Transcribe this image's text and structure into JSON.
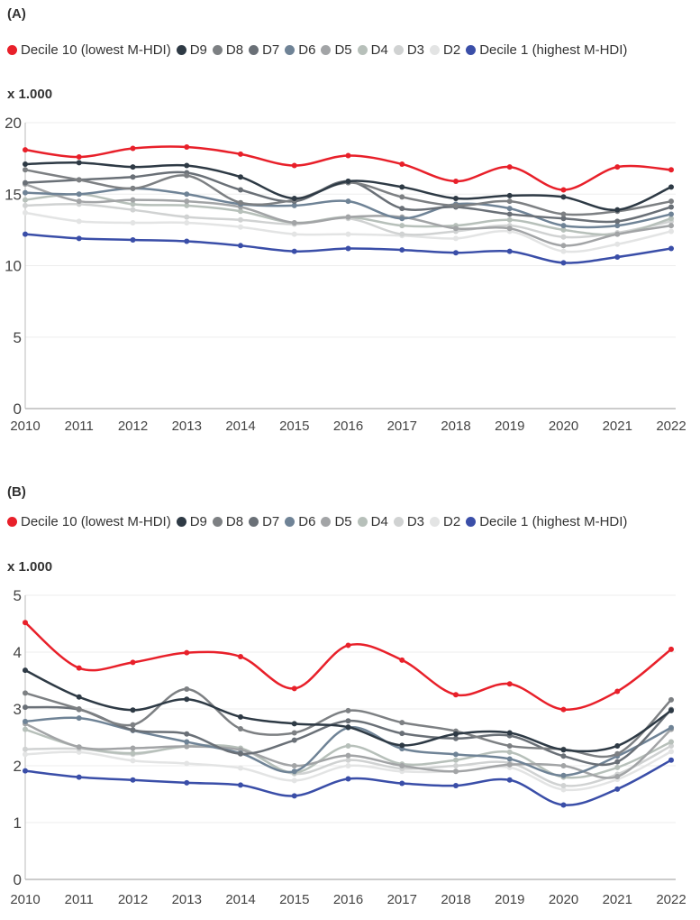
{
  "chart_data": [
    {
      "type": "line",
      "title": "(A)",
      "unit_label": "x 1.000",
      "x": [
        2010,
        2011,
        2012,
        2013,
        2014,
        2015,
        2016,
        2017,
        2018,
        2019,
        2020,
        2021,
        2022
      ],
      "ylim": [
        0,
        20
      ],
      "yticks": [
        0,
        5,
        10,
        15,
        20
      ],
      "grid": true,
      "legend_placement": "top",
      "series": [
        {
          "name": "Decile 10 (lowest M-HDI)",
          "color": "#e8202a",
          "values": [
            18.1,
            17.6,
            18.2,
            18.3,
            17.8,
            17.0,
            17.7,
            17.1,
            15.9,
            16.9,
            15.3,
            16.9,
            16.7
          ]
        },
        {
          "name": "D9",
          "color": "#2e3a45",
          "values": [
            17.1,
            17.2,
            16.9,
            17.0,
            16.2,
            14.7,
            15.9,
            15.5,
            14.7,
            14.9,
            14.8,
            13.9,
            15.5
          ]
        },
        {
          "name": "D8",
          "color": "#7d8083",
          "values": [
            16.7,
            16.0,
            15.4,
            16.3,
            14.4,
            14.6,
            15.8,
            14.8,
            14.2,
            14.5,
            13.6,
            13.8,
            14.5
          ]
        },
        {
          "name": "D7",
          "color": "#6a7077",
          "values": [
            15.8,
            16.0,
            16.2,
            16.5,
            15.3,
            14.5,
            15.9,
            14.0,
            14.1,
            13.6,
            13.3,
            13.1,
            14.1
          ]
        },
        {
          "name": "D6",
          "color": "#6f8396",
          "values": [
            15.1,
            15.0,
            15.4,
            15.0,
            14.3,
            14.2,
            14.5,
            13.3,
            14.3,
            14.0,
            12.8,
            12.8,
            13.6
          ]
        },
        {
          "name": "D5",
          "color": "#a2a4a6",
          "values": [
            15.7,
            14.5,
            14.6,
            14.5,
            14.1,
            13.0,
            13.4,
            13.4,
            12.6,
            12.6,
            11.4,
            12.2,
            12.8
          ]
        },
        {
          "name": "D4",
          "color": "#b7c0ba",
          "values": [
            14.6,
            15.0,
            14.3,
            14.2,
            13.8,
            13.0,
            13.4,
            12.8,
            12.8,
            13.2,
            12.5,
            12.2,
            13.3
          ]
        },
        {
          "name": "D3",
          "color": "#d0d2d2",
          "values": [
            14.2,
            14.3,
            13.9,
            13.4,
            13.2,
            12.9,
            13.3,
            12.2,
            12.4,
            12.8,
            12.0,
            12.3,
            13.1
          ]
        },
        {
          "name": "D2",
          "color": "#e3e4e4",
          "values": [
            13.7,
            13.1,
            13.0,
            13.0,
            12.7,
            12.2,
            12.2,
            12.1,
            11.9,
            12.4,
            11.0,
            11.5,
            12.4
          ]
        },
        {
          "name": "Decile 1 (highest M-HDI)",
          "color": "#3a4ea8",
          "values": [
            12.2,
            11.9,
            11.8,
            11.7,
            11.4,
            11.0,
            11.2,
            11.1,
            10.9,
            11.0,
            10.2,
            10.6,
            11.2
          ]
        }
      ]
    },
    {
      "type": "line",
      "title": "(B)",
      "unit_label": "x 1.000",
      "x": [
        2010,
        2011,
        2012,
        2013,
        2014,
        2015,
        2016,
        2017,
        2018,
        2019,
        2020,
        2021,
        2022
      ],
      "ylim": [
        0,
        5
      ],
      "yticks": [
        0,
        1,
        2,
        3,
        4,
        5
      ],
      "grid": true,
      "legend_placement": "top",
      "series": [
        {
          "name": "Decile 10 (lowest M-HDI)",
          "color": "#e8202a",
          "values": [
            4.52,
            3.72,
            3.82,
            3.99,
            3.92,
            3.36,
            4.12,
            3.86,
            3.25,
            3.44,
            2.99,
            3.31,
            4.05
          ]
        },
        {
          "name": "D9",
          "color": "#2e3a45",
          "values": [
            3.68,
            3.21,
            2.98,
            3.17,
            2.86,
            2.74,
            2.68,
            2.36,
            2.56,
            2.58,
            2.28,
            2.35,
            2.97
          ]
        },
        {
          "name": "D8",
          "color": "#7d8083",
          "values": [
            3.28,
            3.0,
            2.72,
            3.35,
            2.65,
            2.58,
            2.97,
            2.76,
            2.61,
            2.35,
            2.29,
            2.21,
            3.16
          ]
        },
        {
          "name": "D7",
          "color": "#6a7077",
          "values": [
            3.03,
            2.99,
            2.63,
            2.56,
            2.21,
            2.45,
            2.79,
            2.57,
            2.48,
            2.53,
            2.17,
            2.07,
            2.99
          ]
        },
        {
          "name": "D6",
          "color": "#6f8396",
          "values": [
            2.78,
            2.84,
            2.62,
            2.42,
            2.22,
            1.9,
            2.67,
            2.3,
            2.2,
            2.12,
            1.83,
            2.17,
            2.67
          ]
        },
        {
          "name": "D5",
          "color": "#a2a4a6",
          "values": [
            2.74,
            2.33,
            2.31,
            2.34,
            2.28,
            2.0,
            2.18,
            2.0,
            1.9,
            2.02,
            2.0,
            1.81,
            2.64
          ]
        },
        {
          "name": "D4",
          "color": "#b7c0ba",
          "values": [
            2.64,
            2.33,
            2.22,
            2.34,
            2.31,
            1.88,
            2.35,
            2.03,
            2.1,
            2.24,
            1.8,
            1.97,
            2.42
          ]
        },
        {
          "name": "D3",
          "color": "#d0d2d2",
          "values": [
            2.29,
            2.3,
            2.2,
            2.35,
            2.3,
            1.86,
            2.1,
            1.95,
            2.0,
            2.05,
            1.65,
            1.85,
            2.35
          ]
        },
        {
          "name": "D2",
          "color": "#e3e4e4",
          "values": [
            2.2,
            2.24,
            2.09,
            2.04,
            1.96,
            1.74,
            2.0,
            1.9,
            1.9,
            1.97,
            1.58,
            1.76,
            2.25
          ]
        },
        {
          "name": "Decile 1 (highest M-HDI)",
          "color": "#3a4ea8",
          "values": [
            1.91,
            1.8,
            1.75,
            1.7,
            1.66,
            1.47,
            1.77,
            1.69,
            1.65,
            1.75,
            1.31,
            1.59,
            2.1
          ]
        }
      ]
    }
  ]
}
